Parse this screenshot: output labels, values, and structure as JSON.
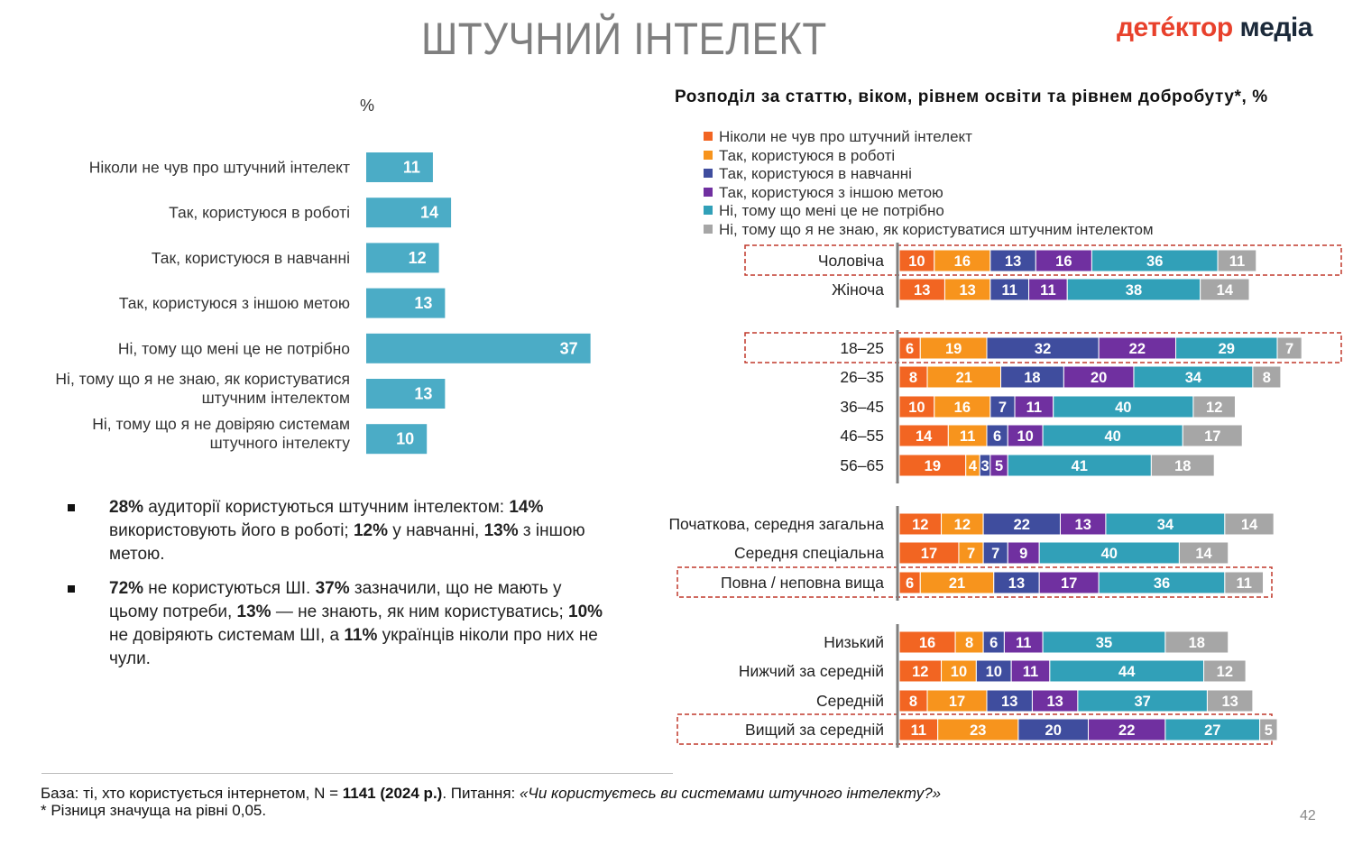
{
  "header": {
    "title": "ШТУЧНИЙ ІНТЕЛЕКТ",
    "logo_part1": "детéктор",
    "logo_part2": "медіа"
  },
  "left_chart_unit": "%",
  "right_chart_title": "Розподіл за статтю, віком, рівнем освіти та рівнем добробуту*, %",
  "colors": {
    "left_bar": "#4bacc6",
    "never_heard": "#f26522",
    "work": "#f7941d",
    "study": "#3f4d9e",
    "other": "#7030a0",
    "not_needed": "#31a0b8",
    "dont_know": "#a6a6a6",
    "highlight_border": "#c0392b"
  },
  "chart_data": [
    {
      "type": "bar",
      "orientation": "horizontal",
      "categories": [
        "Ніколи не чув про штучний інтелект",
        "Так, користуюся в роботі",
        "Так, користуюся в навчанні",
        "Так, користуюся з іншою метою",
        "Ні, тому що мені це не потрібно",
        "Ні, тому що я не знаю, як користуватися штучним інтелектом",
        "Ні, тому що я не довіряю системам штучного інтелекту"
      ],
      "values": [
        11,
        14,
        12,
        13,
        37,
        13,
        10
      ],
      "xlim": [
        0,
        40
      ]
    },
    {
      "type": "bar",
      "orientation": "horizontal",
      "stacked": true,
      "series": [
        {
          "name": "Ніколи не чув про штучний інтелект",
          "color_key": "never_heard"
        },
        {
          "name": "Так, користуюся в роботі",
          "color_key": "work"
        },
        {
          "name": "Так, користуюся в навчанні",
          "color_key": "study"
        },
        {
          "name": "Так, користуюся з іншою метою",
          "color_key": "other"
        },
        {
          "name": "Ні, тому що мені це не потрібно",
          "color_key": "not_needed"
        },
        {
          "name": "Ні, тому що я не знаю, як користуватися штучним інтелектом",
          "color_key": "dont_know"
        }
      ],
      "rows": [
        {
          "label": "Чоловіча",
          "values": [
            10,
            16,
            13,
            16,
            36,
            11
          ],
          "highlight": true
        },
        {
          "label": "Жіноча",
          "values": [
            13,
            13,
            11,
            11,
            38,
            14
          ],
          "highlight": false
        },
        {
          "label": "18–25",
          "values": [
            6,
            19,
            32,
            22,
            29,
            7
          ],
          "highlight": true
        },
        {
          "label": "26–35",
          "values": [
            8,
            21,
            18,
            20,
            34,
            8
          ],
          "highlight": false
        },
        {
          "label": "36–45",
          "values": [
            10,
            16,
            7,
            11,
            40,
            12
          ],
          "highlight": false
        },
        {
          "label": "46–55",
          "values": [
            14,
            11,
            6,
            10,
            40,
            17
          ],
          "highlight": false
        },
        {
          "label": "56–65",
          "values": [
            19,
            4,
            3,
            5,
            41,
            18
          ],
          "highlight": false
        },
        {
          "label": "Початкова, середня загальна",
          "values": [
            12,
            12,
            22,
            13,
            34,
            14
          ],
          "highlight": false
        },
        {
          "label": "Середня спеціальна",
          "values": [
            17,
            7,
            7,
            9,
            40,
            14
          ],
          "highlight": false
        },
        {
          "label": "Повна / неповна вища",
          "values": [
            6,
            21,
            13,
            17,
            36,
            11
          ],
          "highlight": true
        },
        {
          "label": "Низький",
          "values": [
            16,
            8,
            6,
            11,
            35,
            18
          ],
          "highlight": false
        },
        {
          "label": "Нижчий за середній",
          "values": [
            12,
            10,
            10,
            11,
            44,
            12
          ],
          "highlight": false
        },
        {
          "label": "Середній",
          "values": [
            8,
            17,
            13,
            13,
            37,
            13
          ],
          "highlight": false
        },
        {
          "label": "Вищий за середній",
          "values": [
            11,
            23,
            20,
            22,
            27,
            5
          ],
          "highlight": true
        }
      ]
    }
  ],
  "bullets": [
    {
      "b1": "28%",
      "t1": " аудиторії користуються штучним інтелектом: ",
      "b2": "14%",
      "t2": "  використовують його в роботі; ",
      "b3": "12%",
      "t3": " у навчанні, ",
      "b4": "13%",
      "t4": " з іншою метою."
    },
    {
      "b1": "72%",
      "t1": " не користуються ШІ. ",
      "b2": "37%",
      "t2": " зазначили, що не мають у цьому потреби, ",
      "b3": "13%",
      "t3": " — не знають, як ним користуватись; ",
      "b4": "10%",
      "t4": " не довіряють системам ШІ,  а ",
      "b5": "11%",
      "t5": " українців ніколи про них не чули."
    }
  ],
  "footer": {
    "base_text": "База: ті, хто користується інтернетом, N = ",
    "n_value": "1141 (2024 р.)",
    "question_prefix": ". Питання: ",
    "question": "«Чи користуєтесь ви системами штучного інтелекту?»",
    "note": "* Різниця значуща на рівні 0,05."
  },
  "page_number": "42"
}
